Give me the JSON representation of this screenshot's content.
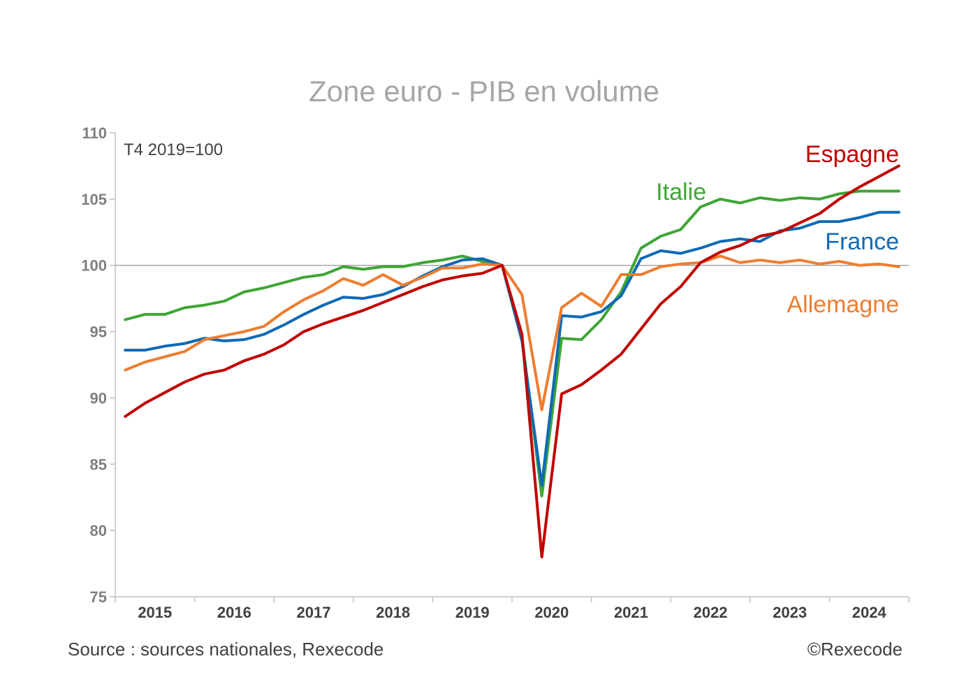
{
  "chart_data": {
    "type": "line",
    "title": "Zone euro - PIB en volume",
    "note": "T4 2019=100",
    "source": "Source : sources nationales, Rexecode",
    "copyright": "©Rexecode",
    "ylim": [
      75,
      110
    ],
    "yticks": [
      "75",
      "80",
      "85",
      "90",
      "95",
      "100",
      "105",
      "110"
    ],
    "ytick_values": [
      75,
      80,
      85,
      90,
      95,
      100,
      105,
      110
    ],
    "years": [
      "2015",
      "2016",
      "2017",
      "2018",
      "2019",
      "2020",
      "2021",
      "2022",
      "2023",
      "2024"
    ],
    "quarters_count": 40,
    "reference_value": 100,
    "series": [
      {
        "name": "Italie",
        "color": "#3fa535",
        "values": [
          95.9,
          96.3,
          96.3,
          96.8,
          97.0,
          97.3,
          98.0,
          98.3,
          98.7,
          99.1,
          99.3,
          99.9,
          99.7,
          99.9,
          99.9,
          100.2,
          100.4,
          100.7,
          100.3,
          100.0,
          94.5,
          82.6,
          94.5,
          94.4,
          95.9,
          98.0,
          101.3,
          102.2,
          102.7,
          104.4,
          105.0,
          104.7,
          105.1,
          104.9,
          105.1,
          105.0,
          105.4,
          105.6,
          105.6,
          105.6
        ]
      },
      {
        "name": "France",
        "color": "#0f6ab4",
        "values": [
          93.6,
          93.6,
          93.9,
          94.1,
          94.5,
          94.3,
          94.4,
          94.8,
          95.5,
          96.3,
          97.0,
          97.6,
          97.5,
          97.8,
          98.4,
          99.2,
          99.9,
          100.4,
          100.5,
          100.0,
          94.3,
          83.4,
          96.2,
          96.1,
          96.5,
          97.7,
          100.5,
          101.1,
          100.9,
          101.3,
          101.8,
          102.0,
          101.8,
          102.6,
          102.8,
          103.3,
          103.3,
          103.6,
          104.0,
          104.0
        ]
      },
      {
        "name": "Espagne",
        "color": "#c00000",
        "values": [
          88.6,
          89.6,
          90.4,
          91.2,
          91.8,
          92.1,
          92.8,
          93.3,
          94.0,
          95.0,
          95.6,
          96.1,
          96.6,
          97.2,
          97.8,
          98.4,
          98.9,
          99.2,
          99.4,
          100.0,
          94.8,
          78.0,
          90.3,
          91.0,
          92.1,
          93.3,
          95.2,
          97.1,
          98.4,
          100.2,
          101.0,
          101.5,
          102.2,
          102.5,
          103.2,
          103.9,
          105.0,
          105.9,
          106.7,
          107.5
        ]
      },
      {
        "name": "Allemagne",
        "color": "#ed7d31",
        "values": [
          92.1,
          92.7,
          93.1,
          93.5,
          94.4,
          94.7,
          95.0,
          95.4,
          96.5,
          97.4,
          98.1,
          99.0,
          98.5,
          99.3,
          98.5,
          99.1,
          99.8,
          99.8,
          100.1,
          100.0,
          97.8,
          89.1,
          96.8,
          97.9,
          96.9,
          99.3,
          99.3,
          99.9,
          100.1,
          100.2,
          100.7,
          100.2,
          100.4,
          100.2,
          100.4,
          100.1,
          100.3,
          100.0,
          100.1,
          99.9
        ]
      }
    ]
  }
}
